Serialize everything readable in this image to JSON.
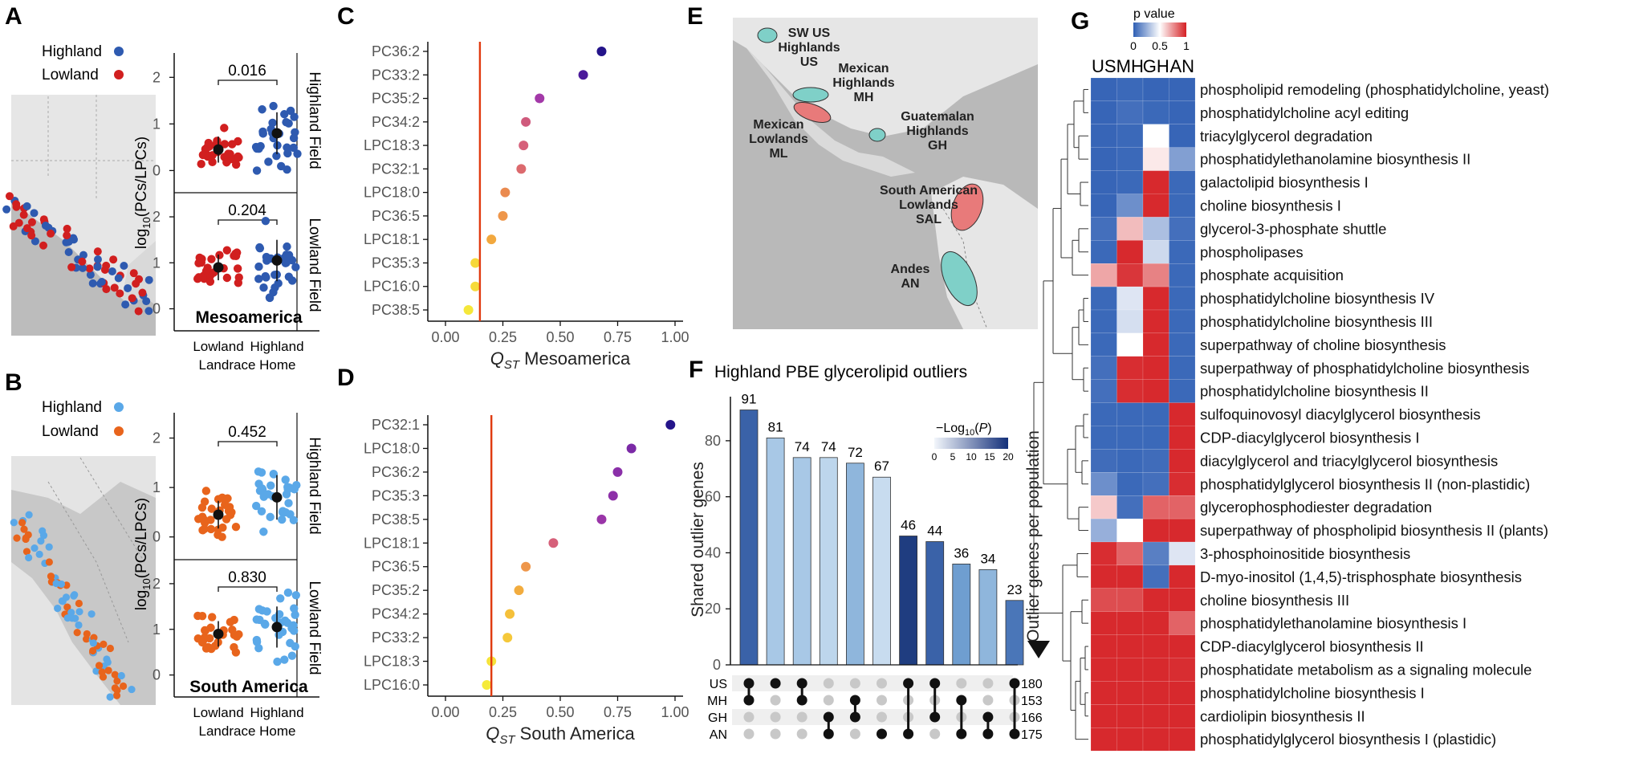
{
  "panel_letters": [
    "A",
    "B",
    "C",
    "D",
    "E",
    "F",
    "G"
  ],
  "colors": {
    "highland_A": "#2e5ab0",
    "lowland_A": "#d11f1f",
    "highland_B": "#5aa8e8",
    "lowland_B": "#e8641c",
    "qst_line": "#e03a0f",
    "map_ellipse_teal": "#7fd0c8",
    "map_ellipse_red": "#e87a7a",
    "upset_dot_on": "#111111",
    "upset_dot_off": "#c8c8c8"
  },
  "panel_A": {
    "legend": [
      {
        "label": "Highland",
        "color": "#2e5ab0"
      },
      {
        "label": "Lowland",
        "color": "#d11f1f"
      }
    ],
    "ylabel": "log10(PCs/LPCs)",
    "facets": [
      "Highland Field",
      "Lowland Field"
    ],
    "pvalues": [
      "0.016",
      "0.204"
    ],
    "region": "Mesoamerica",
    "xticks": [
      "Lowland",
      "Highland"
    ],
    "xlabel": "Landrace Home",
    "yticks": [
      "0",
      "1",
      "2"
    ]
  },
  "panel_B": {
    "legend": [
      {
        "label": "Highland",
        "color": "#5aa8e8"
      },
      {
        "label": "Lowland",
        "color": "#e8641c"
      }
    ],
    "ylabel": "log10(PCs/LPCs)",
    "facets": [
      "Highland Field",
      "Lowland Field"
    ],
    "pvalues": [
      "0.452",
      "0.830"
    ],
    "region": "South America",
    "xticks": [
      "Lowland",
      "Highland"
    ],
    "xlabel": "Landrace Home",
    "yticks": [
      "0",
      "1",
      "2"
    ]
  },
  "chart_data": [
    {
      "type": "scatter",
      "panel": "C",
      "xlabel_main": "Q",
      "xlabel_sub": "ST",
      "xlabel_rest": " Mesoamerica",
      "xlim": [
        0,
        1.0
      ],
      "xticks": [
        "0.00",
        "0.25",
        "0.50",
        "0.75",
        "1.00"
      ],
      "threshold": 0.15,
      "categories": [
        "PC36:2",
        "PC33:2",
        "PC35:2",
        "PC34:2",
        "LPC18:3",
        "PC32:1",
        "LPC18:0",
        "PC36:5",
        "LPC18:1",
        "PC35:3",
        "LPC16:0",
        "PC38:5"
      ],
      "values": [
        0.68,
        0.6,
        0.41,
        0.35,
        0.34,
        0.33,
        0.26,
        0.25,
        0.2,
        0.13,
        0.13,
        0.1
      ],
      "colors": [
        "#24148a",
        "#4b1a9a",
        "#a339a8",
        "#cf5a7c",
        "#d6607a",
        "#dc6a6e",
        "#ea8a4f",
        "#ee964a",
        "#f2a83e",
        "#f6d83a",
        "#f6da3a",
        "#f5e73a"
      ]
    },
    {
      "type": "scatter",
      "panel": "D",
      "xlabel_main": "Q",
      "xlabel_sub": "ST",
      "xlabel_rest": " South America",
      "xlim": [
        0,
        1.0
      ],
      "xticks": [
        "0.00",
        "0.25",
        "0.50",
        "0.75",
        "1.00"
      ],
      "threshold": 0.2,
      "categories": [
        "PC32:1",
        "LPC18:0",
        "PC36:2",
        "PC35:3",
        "PC38:5",
        "LPC18:1",
        "PC36:5",
        "PC35:2",
        "PC34:2",
        "PC33:2",
        "LPC18:3",
        "LPC16:0"
      ],
      "values": [
        0.98,
        0.81,
        0.75,
        0.73,
        0.68,
        0.47,
        0.35,
        0.32,
        0.28,
        0.27,
        0.2,
        0.18
      ],
      "colors": [
        "#24148a",
        "#7b2aa6",
        "#8a2fa8",
        "#8d30a8",
        "#9a35a8",
        "#d6607a",
        "#ee964a",
        "#f2ac3e",
        "#f5c03a",
        "#f5c83a",
        "#f6e23a",
        "#f5ea3a"
      ]
    },
    {
      "type": "bar",
      "panel": "F",
      "title": "Highland PBE glycerolipid outliers",
      "ylabel": "Shared outlier genes",
      "ylabel_right": "Outlier genes per population",
      "ylim": [
        0,
        90
      ],
      "yticks": [
        "0",
        "20",
        "40",
        "60",
        "80"
      ],
      "values": [
        91,
        81,
        74,
        74,
        72,
        67,
        46,
        44,
        36,
        34,
        23
      ],
      "bar_colors": [
        "#3a62a8",
        "#a8c8e6",
        "#a8c8e6",
        "#bdd6ec",
        "#8fb6dc",
        "#c8dcef",
        "#1f3d80",
        "#3a62a8",
        "#6f9ed0",
        "#8fb6dc",
        "#4a76b8"
      ],
      "sets": [
        "US",
        "MH",
        "GH",
        "AN"
      ],
      "set_sizes": [
        "180",
        "153",
        "166",
        "175"
      ],
      "membership": [
        [
          1,
          1,
          0,
          0
        ],
        [
          1,
          0,
          0,
          0
        ],
        [
          1,
          1,
          0,
          0
        ],
        [
          0,
          0,
          1,
          1
        ],
        [
          0,
          1,
          1,
          0
        ],
        [
          0,
          0,
          0,
          1
        ],
        [
          1,
          0,
          0,
          1
        ],
        [
          1,
          0,
          1,
          0
        ],
        [
          0,
          1,
          0,
          1
        ],
        [
          0,
          0,
          1,
          1
        ],
        [
          1,
          0,
          0,
          1
        ]
      ],
      "legend_title": "-Log10(P)",
      "legend_ticks": [
        "0",
        "5",
        "10",
        "15",
        "20"
      ]
    },
    {
      "type": "heatmap",
      "panel": "G",
      "legend_title": "p value",
      "legend_ticks": [
        "0",
        "0.5",
        "1"
      ],
      "columns": [
        "US",
        "MH",
        "GH",
        "AN"
      ],
      "rows": [
        "phospholipid remodeling (phosphatidylcholine, yeast)",
        "phosphatidylcholine acyl editing",
        "triacylglycerol degradation",
        "phosphatidylethanolamine biosynthesis II",
        "galactolipid biosynthesis I",
        "choline biosynthesis I",
        "glycerol-3-phosphate shuttle",
        "phospholipases",
        "phosphate acquisition",
        "phosphatidylcholine biosynthesis IV",
        "phosphatidylcholine biosynthesis III",
        "superpathway of choline biosynthesis",
        "superpathway of phosphatidylcholine biosynthesis",
        "phosphatidylcholine biosynthesis II",
        "sulfoquinovosyl diacylglycerol biosynthesis",
        "CDP-diacylglycerol biosynthesis I",
        "diacylglycerol and triacylglycerol biosynthesis",
        "phosphatidylglycerol biosynthesis II (non-plastidic)",
        "glycerophosphodiester degradation",
        "superpathway of phospholipid biosynthesis II (plants)",
        "3-phosphoinositide biosynthesis",
        "D-myo-inositol (1,4,5)-trisphosphate biosynthesis",
        "choline biosynthesis III",
        "phosphatidylethanolamine biosynthesis I",
        "CDP-diacylglycerol biosynthesis II",
        "phosphatidate metabolism as a signaling molecule",
        "phosphatidylcholine biosynthesis I",
        "cardiolipin biosynthesis II",
        "phosphatidylglycerol biosynthesis I (plastidic)"
      ],
      "values": [
        [
          0.02,
          0.03,
          0.02,
          0.02
        ],
        [
          0.02,
          0.05,
          0.03,
          0.02
        ],
        [
          0.02,
          0.03,
          0.5,
          0.02
        ],
        [
          0.02,
          0.03,
          0.55,
          0.2
        ],
        [
          0.02,
          0.03,
          0.98,
          0.03
        ],
        [
          0.02,
          0.15,
          0.98,
          0.03
        ],
        [
          0.05,
          0.65,
          0.3,
          0.05
        ],
        [
          0.03,
          0.98,
          0.38,
          0.03
        ],
        [
          0.7,
          0.95,
          0.78,
          0.03
        ],
        [
          0.03,
          0.42,
          0.98,
          0.03
        ],
        [
          0.03,
          0.4,
          0.98,
          0.03
        ],
        [
          0.03,
          0.5,
          0.98,
          0.03
        ],
        [
          0.05,
          0.97,
          0.98,
          0.03
        ],
        [
          0.05,
          0.97,
          0.98,
          0.03
        ],
        [
          0.03,
          0.03,
          0.03,
          0.98
        ],
        [
          0.03,
          0.03,
          0.03,
          0.98
        ],
        [
          0.04,
          0.03,
          0.04,
          0.98
        ],
        [
          0.15,
          0.03,
          0.05,
          0.97
        ],
        [
          0.62,
          0.05,
          0.85,
          0.85
        ],
        [
          0.25,
          0.5,
          0.98,
          0.98
        ],
        [
          0.97,
          0.85,
          0.1,
          0.42
        ],
        [
          0.98,
          0.98,
          0.05,
          0.98
        ],
        [
          0.9,
          0.9,
          0.98,
          0.98
        ],
        [
          0.98,
          0.98,
          0.98,
          0.85
        ],
        [
          0.98,
          0.98,
          0.98,
          0.98
        ],
        [
          0.98,
          0.98,
          0.98,
          0.97
        ],
        [
          0.98,
          0.98,
          0.98,
          0.98
        ],
        [
          0.98,
          0.98,
          0.98,
          0.98
        ],
        [
          0.98,
          0.98,
          0.98,
          0.98
        ]
      ]
    }
  ],
  "panel_E": {
    "labels": [
      {
        "text": "SW US\nHighlands\nUS"
      },
      {
        "text": "Mexican\nHighlands\nMH"
      },
      {
        "text": "Mexican\nLowlands\nML"
      },
      {
        "text": "Guatemalan\nHighlands\nGH"
      },
      {
        "text": "South American\nLowlands\nSAL"
      },
      {
        "text": "Andes\nAN"
      }
    ]
  }
}
